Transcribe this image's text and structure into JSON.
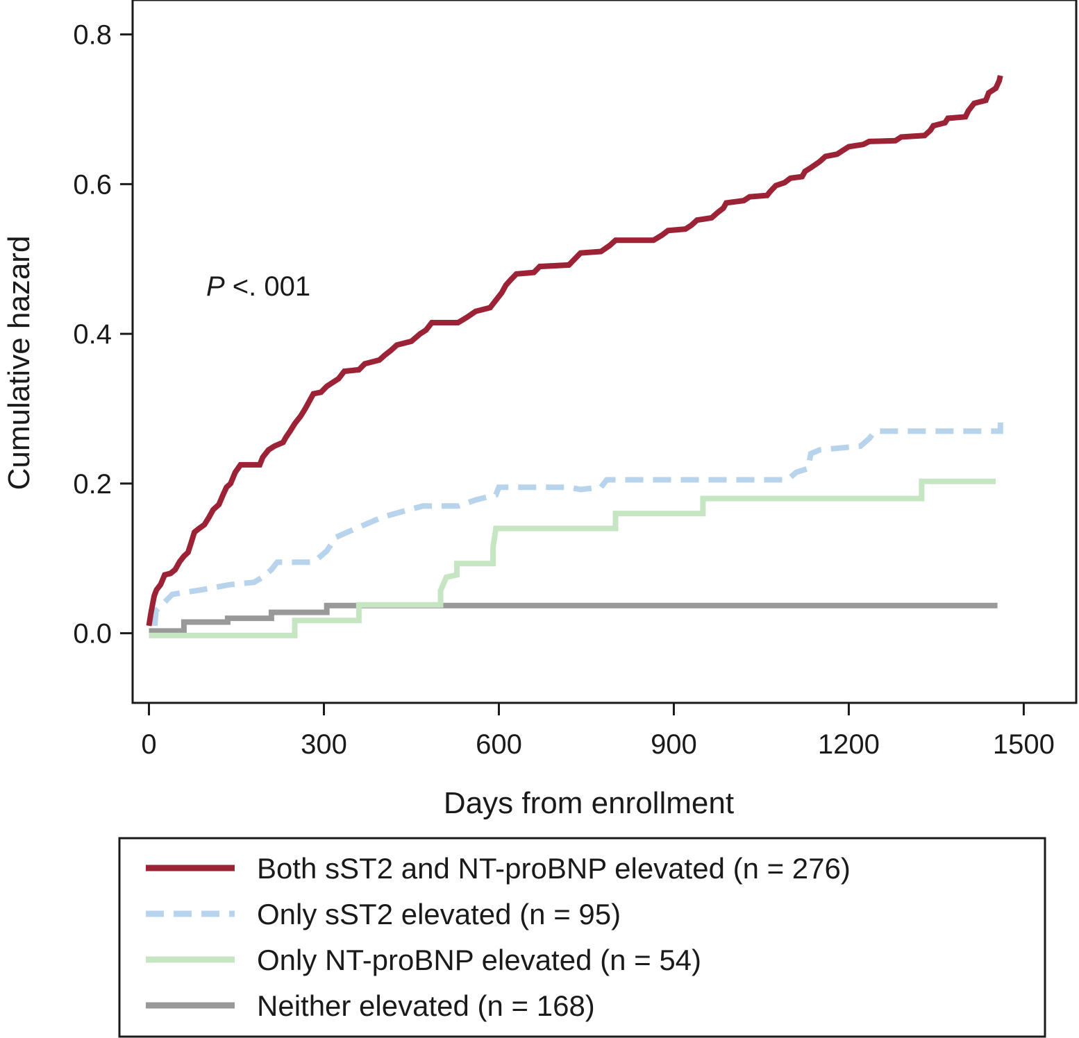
{
  "chart_data": {
    "type": "line",
    "step": true,
    "xlabel": "Days from enrollment",
    "ylabel": "Cumulative hazard",
    "xlim": [
      -28,
      1590
    ],
    "ylim": [
      -0.093,
      0.846
    ],
    "xticks": [
      0,
      300,
      600,
      900,
      1200,
      1500
    ],
    "xtick_labels": [
      "0",
      "300",
      "600",
      "900",
      "1200",
      "1500"
    ],
    "yticks": [
      0.0,
      0.2,
      0.4,
      0.6,
      0.8
    ],
    "ytick_labels": [
      "0.0",
      "0.2",
      "0.4",
      "0.6",
      "0.8"
    ],
    "grid": false,
    "legend_position": "bottom",
    "annotation": {
      "italic": "P",
      "rest": " <. 001"
    },
    "series": [
      {
        "name": "Both sST2 and NT-proBNP elevated (n = 276)",
        "color": "#9b2335",
        "dash": "solid",
        "points": [
          [
            0,
            0.01
          ],
          [
            3,
            0.025
          ],
          [
            6,
            0.038
          ],
          [
            9,
            0.05
          ],
          [
            13,
            0.058
          ],
          [
            20,
            0.065
          ],
          [
            27,
            0.078
          ],
          [
            37,
            0.08
          ],
          [
            45,
            0.085
          ],
          [
            53,
            0.096
          ],
          [
            60,
            0.103
          ],
          [
            67,
            0.108
          ],
          [
            72,
            0.12
          ],
          [
            78,
            0.135
          ],
          [
            86,
            0.14
          ],
          [
            95,
            0.145
          ],
          [
            103,
            0.155
          ],
          [
            110,
            0.165
          ],
          [
            120,
            0.172
          ],
          [
            127,
            0.185
          ],
          [
            133,
            0.195
          ],
          [
            140,
            0.2
          ],
          [
            148,
            0.215
          ],
          [
            157,
            0.225
          ],
          [
            190,
            0.225
          ],
          [
            195,
            0.235
          ],
          [
            205,
            0.245
          ],
          [
            215,
            0.25
          ],
          [
            230,
            0.255
          ],
          [
            235,
            0.262
          ],
          [
            242,
            0.27
          ],
          [
            250,
            0.28
          ],
          [
            260,
            0.29
          ],
          [
            268,
            0.3
          ],
          [
            275,
            0.31
          ],
          [
            282,
            0.32
          ],
          [
            295,
            0.322
          ],
          [
            305,
            0.33
          ],
          [
            315,
            0.335
          ],
          [
            325,
            0.34
          ],
          [
            335,
            0.35
          ],
          [
            360,
            0.352
          ],
          [
            370,
            0.36
          ],
          [
            395,
            0.365
          ],
          [
            405,
            0.372
          ],
          [
            415,
            0.378
          ],
          [
            425,
            0.385
          ],
          [
            450,
            0.39
          ],
          [
            465,
            0.4
          ],
          [
            475,
            0.405
          ],
          [
            485,
            0.415
          ],
          [
            530,
            0.415
          ],
          [
            545,
            0.422
          ],
          [
            560,
            0.43
          ],
          [
            585,
            0.435
          ],
          [
            595,
            0.445
          ],
          [
            605,
            0.455
          ],
          [
            612,
            0.465
          ],
          [
            620,
            0.472
          ],
          [
            630,
            0.48
          ],
          [
            660,
            0.482
          ],
          [
            670,
            0.49
          ],
          [
            720,
            0.492
          ],
          [
            730,
            0.5
          ],
          [
            740,
            0.508
          ],
          [
            775,
            0.51
          ],
          [
            790,
            0.518
          ],
          [
            800,
            0.525
          ],
          [
            865,
            0.525
          ],
          [
            880,
            0.532
          ],
          [
            890,
            0.538
          ],
          [
            920,
            0.54
          ],
          [
            930,
            0.545
          ],
          [
            940,
            0.552
          ],
          [
            965,
            0.555
          ],
          [
            975,
            0.562
          ],
          [
            985,
            0.568
          ],
          [
            990,
            0.575
          ],
          [
            1020,
            0.578
          ],
          [
            1030,
            0.583
          ],
          [
            1060,
            0.585
          ],
          [
            1065,
            0.59
          ],
          [
            1075,
            0.598
          ],
          [
            1090,
            0.602
          ],
          [
            1100,
            0.608
          ],
          [
            1120,
            0.61
          ],
          [
            1125,
            0.617
          ],
          [
            1135,
            0.622
          ],
          [
            1150,
            0.63
          ],
          [
            1160,
            0.637
          ],
          [
            1180,
            0.64
          ],
          [
            1190,
            0.645
          ],
          [
            1200,
            0.65
          ],
          [
            1225,
            0.653
          ],
          [
            1235,
            0.657
          ],
          [
            1280,
            0.658
          ],
          [
            1290,
            0.663
          ],
          [
            1330,
            0.665
          ],
          [
            1340,
            0.672
          ],
          [
            1345,
            0.678
          ],
          [
            1365,
            0.682
          ],
          [
            1370,
            0.688
          ],
          [
            1400,
            0.69
          ],
          [
            1405,
            0.698
          ],
          [
            1415,
            0.708
          ],
          [
            1435,
            0.712
          ],
          [
            1440,
            0.722
          ],
          [
            1452,
            0.728
          ],
          [
            1458,
            0.738
          ],
          [
            1460,
            0.745
          ]
        ]
      },
      {
        "name": "Only sST2 elevated (n = 95)",
        "color": "#b8d3ec",
        "dash": "dashed",
        "points": [
          [
            10,
            0.01
          ],
          [
            12,
            0.03
          ],
          [
            25,
            0.04
          ],
          [
            40,
            0.052
          ],
          [
            90,
            0.058
          ],
          [
            140,
            0.065
          ],
          [
            180,
            0.068
          ],
          [
            195,
            0.075
          ],
          [
            210,
            0.085
          ],
          [
            220,
            0.095
          ],
          [
            280,
            0.095
          ],
          [
            290,
            0.1
          ],
          [
            305,
            0.11
          ],
          [
            320,
            0.128
          ],
          [
            340,
            0.135
          ],
          [
            370,
            0.145
          ],
          [
            400,
            0.155
          ],
          [
            445,
            0.165
          ],
          [
            470,
            0.17
          ],
          [
            530,
            0.17
          ],
          [
            560,
            0.178
          ],
          [
            595,
            0.185
          ],
          [
            600,
            0.195
          ],
          [
            720,
            0.195
          ],
          [
            740,
            0.192
          ],
          [
            775,
            0.195
          ],
          [
            785,
            0.205
          ],
          [
            1095,
            0.205
          ],
          [
            1110,
            0.215
          ],
          [
            1130,
            0.22
          ],
          [
            1135,
            0.24
          ],
          [
            1150,
            0.245
          ],
          [
            1220,
            0.25
          ],
          [
            1235,
            0.26
          ],
          [
            1245,
            0.27
          ],
          [
            1460,
            0.27
          ],
          [
            1460,
            0.285
          ]
        ]
      },
      {
        "name": "Only NT-proBNP elevated (n = 54)",
        "color": "#c5e5c3",
        "dash": "solid",
        "points": [
          [
            0,
            -0.003
          ],
          [
            250,
            -0.003
          ],
          [
            250,
            0.017
          ],
          [
            360,
            0.017
          ],
          [
            360,
            0.038
          ],
          [
            500,
            0.038
          ],
          [
            500,
            0.057
          ],
          [
            510,
            0.075
          ],
          [
            528,
            0.078
          ],
          [
            528,
            0.093
          ],
          [
            590,
            0.093
          ],
          [
            590,
            0.115
          ],
          [
            595,
            0.14
          ],
          [
            800,
            0.14
          ],
          [
            800,
            0.16
          ],
          [
            950,
            0.16
          ],
          [
            950,
            0.18
          ],
          [
            1325,
            0.18
          ],
          [
            1325,
            0.203
          ],
          [
            1452,
            0.203
          ]
        ]
      },
      {
        "name": "Neither elevated (n = 168)",
        "color": "#999999",
        "dash": "solid",
        "points": [
          [
            0,
            0.003
          ],
          [
            60,
            0.003
          ],
          [
            60,
            0.015
          ],
          [
            135,
            0.015
          ],
          [
            135,
            0.02
          ],
          [
            210,
            0.02
          ],
          [
            210,
            0.028
          ],
          [
            305,
            0.028
          ],
          [
            305,
            0.037
          ],
          [
            1455,
            0.037
          ]
        ]
      }
    ]
  }
}
